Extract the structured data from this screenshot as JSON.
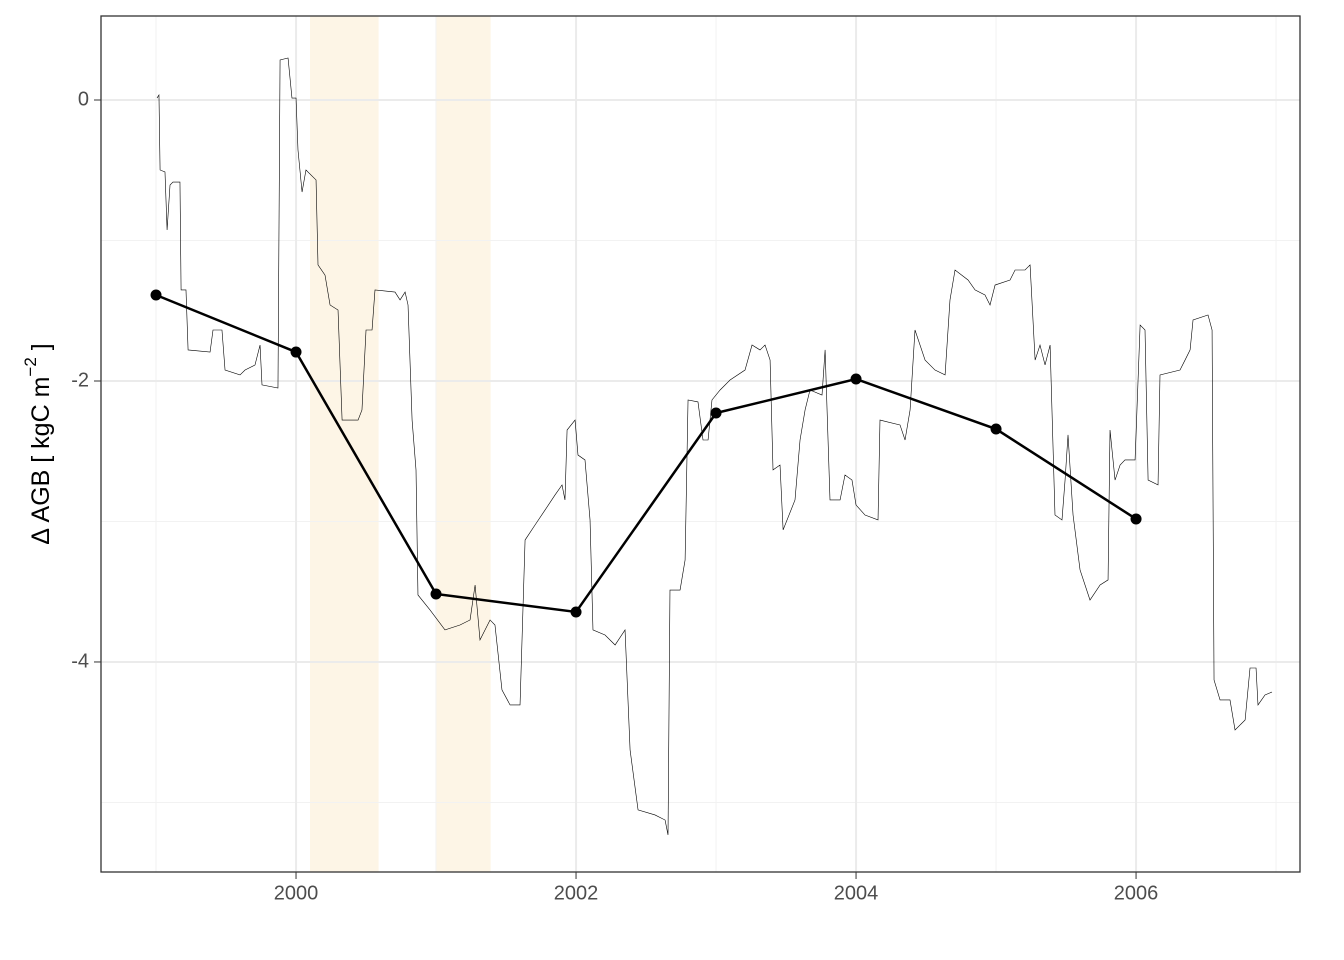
{
  "chart_data": {
    "type": "line",
    "y_label": {
      "text": "Δ AGB [ kgC m",
      "superscript": "−2",
      "close": " ]"
    },
    "xlim": [
      1998.607,
      2007.171
    ],
    "ylim": [
      -5.495,
      0.598
    ],
    "xticks": [
      2000,
      2002,
      2004,
      2006
    ],
    "yticks": [
      -4,
      -2,
      0
    ],
    "xminorticks": [
      1999,
      2001,
      2003,
      2005,
      2007
    ],
    "yminorticks": [
      -5,
      -3,
      -1
    ],
    "grid": true,
    "shaded_regions": [
      [
        2000.1,
        2000.59
      ],
      [
        2001.0,
        2001.39
      ]
    ],
    "shade_color": "#fdf5e6",
    "series": [
      {
        "color": "#000000",
        "line_width": 0.6,
        "markers": false,
        "x": [
          1999.007,
          1999.021,
          1999.029,
          1999.064,
          1999.079,
          1999.1,
          1999.121,
          1999.171,
          1999.179,
          1999.214,
          1999.229,
          1999.386,
          1999.407,
          1999.471,
          1999.493,
          1999.6,
          1999.636,
          1999.707,
          1999.743,
          1999.757,
          1999.871,
          1999.886,
          1999.943,
          1999.971,
          2000,
          2000.014,
          2000.043,
          2000.071,
          2000.143,
          2000.157,
          2000.207,
          2000.243,
          2000.3,
          2000.329,
          2000.443,
          2000.471,
          2000.5,
          2000.543,
          2000.564,
          2000.707,
          2000.743,
          2000.779,
          2000.8,
          2000.829,
          2000.857,
          2000.871,
          2000.957,
          2001.064,
          2001.171,
          2001.243,
          2001.279,
          2001.314,
          2001.386,
          2001.421,
          2001.471,
          2001.529,
          2001.6,
          2001.636,
          2001.707,
          2001.779,
          2001.85,
          2001.9,
          2001.921,
          2001.936,
          2001.993,
          2002.014,
          2002.064,
          2002.1,
          2002.121,
          2002.207,
          2002.279,
          2002.35,
          2002.386,
          2002.443,
          2002.564,
          2002.636,
          2002.657,
          2002.671,
          2002.743,
          2002.779,
          2002.8,
          2002.871,
          2002.907,
          2002.943,
          2002.971,
          2003.029,
          2003.1,
          2003.207,
          2003.257,
          2003.314,
          2003.35,
          2003.386,
          2003.407,
          2003.457,
          2003.479,
          2003.564,
          2003.6,
          2003.636,
          2003.671,
          2003.757,
          2003.779,
          2003.814,
          2003.886,
          2003.921,
          2003.971,
          2004,
          2004.064,
          2004.157,
          2004.171,
          2004.314,
          2004.35,
          2004.386,
          2004.421,
          2004.493,
          2004.564,
          2004.636,
          2004.671,
          2004.707,
          2004.8,
          2004.85,
          2004.921,
          2004.957,
          2004.993,
          2005.1,
          2005.136,
          2005.207,
          2005.243,
          2005.279,
          2005.314,
          2005.35,
          2005.386,
          2005.421,
          2005.471,
          2005.493,
          2005.514,
          2005.55,
          2005.6,
          2005.671,
          2005.743,
          2005.8,
          2005.814,
          2005.85,
          2005.886,
          2005.921,
          2005.993,
          2006.029,
          2006.064,
          2006.086,
          2006.157,
          2006.171,
          2006.314,
          2006.35,
          2006.386,
          2006.407,
          2006.514,
          2006.543,
          2006.557,
          2006.6,
          2006.671,
          2006.707,
          2006.779,
          2006.814,
          2006.857,
          2006.871,
          2006.921,
          2006.971
        ],
        "values": [
          0.014,
          0.036,
          -0.498,
          -0.512,
          -0.925,
          -0.605,
          -0.584,
          -0.584,
          -1.352,
          -1.352,
          -1.779,
          -1.794,
          -1.637,
          -1.637,
          -1.922,
          -1.957,
          -1.922,
          -1.886,
          -1.744,
          -2.028,
          -2.05,
          0.285,
          0.299,
          0.014,
          0.014,
          -0.356,
          -0.655,
          -0.498,
          -0.569,
          -1.174,
          -1.246,
          -1.459,
          -1.495,
          -2.278,
          -2.278,
          -2.206,
          -1.637,
          -1.637,
          -1.352,
          -1.367,
          -1.423,
          -1.367,
          -1.459,
          -2.278,
          -2.633,
          -3.523,
          -3.63,
          -3.772,
          -3.737,
          -3.701,
          -3.452,
          -3.843,
          -3.701,
          -3.737,
          -4.199,
          -4.306,
          -4.306,
          -3.132,
          -3.025,
          -2.918,
          -2.811,
          -2.74,
          -2.847,
          -2.349,
          -2.278,
          -2.527,
          -2.562,
          -2.989,
          -3.772,
          -3.808,
          -3.879,
          -3.772,
          -4.626,
          -5.053,
          -5.089,
          -5.125,
          -5.231,
          -3.488,
          -3.488,
          -3.274,
          -2.135,
          -2.149,
          -2.42,
          -2.42,
          -2.135,
          -2.064,
          -1.993,
          -1.922,
          -1.744,
          -1.779,
          -1.744,
          -1.851,
          -2.633,
          -2.598,
          -3.06,
          -2.847,
          -2.42,
          -2.206,
          -2.064,
          -2.1,
          -1.779,
          -2.847,
          -2.847,
          -2.669,
          -2.705,
          -2.883,
          -2.954,
          -2.989,
          -2.278,
          -2.313,
          -2.42,
          -2.206,
          -1.637,
          -1.851,
          -1.922,
          -1.957,
          -1.423,
          -1.21,
          -1.281,
          -1.352,
          -1.388,
          -1.459,
          -1.317,
          -1.281,
          -1.21,
          -1.21,
          -1.174,
          -1.851,
          -1.744,
          -1.886,
          -1.744,
          -2.954,
          -2.989,
          -2.705,
          -2.384,
          -2.954,
          -3.345,
          -3.559,
          -3.452,
          -3.416,
          -2.349,
          -2.705,
          -2.598,
          -2.562,
          -2.562,
          -1.602,
          -1.637,
          -2.705,
          -2.74,
          -1.957,
          -1.922,
          -1.851,
          -1.779,
          -1.566,
          -1.53,
          -1.637,
          -4.128,
          -4.27,
          -4.27,
          -4.484,
          -4.413,
          -4.043,
          -4.043,
          -4.306,
          -4.235,
          -4.214
        ]
      },
      {
        "color": "#000000",
        "line_width": 2.5,
        "markers": true,
        "x": [
          1999,
          2000,
          2001,
          2002,
          2003,
          2004,
          2005,
          2006
        ],
        "values": [
          -1.388,
          -1.794,
          -3.516,
          -3.644,
          -2.228,
          -1.986,
          -2.342,
          -2.982
        ]
      }
    ]
  }
}
